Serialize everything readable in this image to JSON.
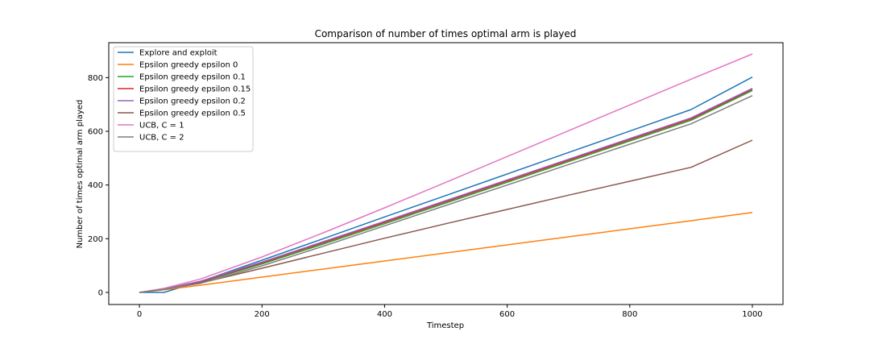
{
  "chart_data": {
    "type": "line",
    "title": "Comparison of number of times optimal arm is played",
    "xlabel": "Timestep",
    "ylabel": "Number of times optimal arm played",
    "xlim": [
      -50,
      1050
    ],
    "ylim": [
      -45,
      930
    ],
    "xticks": [
      0,
      200,
      400,
      600,
      800,
      1000
    ],
    "yticks": [
      0,
      200,
      400,
      600,
      800
    ],
    "grid": false,
    "legend_position": "top-left",
    "series": [
      {
        "name": "Explore and exploit",
        "color": "#1f77b4",
        "points": [
          [
            0,
            0
          ],
          [
            40,
            0
          ],
          [
            100,
            41
          ],
          [
            200,
            120
          ],
          [
            300,
            200
          ],
          [
            400,
            281
          ],
          [
            500,
            361
          ],
          [
            600,
            441
          ],
          [
            700,
            521
          ],
          [
            800,
            601
          ],
          [
            900,
            681
          ],
          [
            1000,
            802
          ]
        ]
      },
      {
        "name": "Epsilon greedy epsilon 0",
        "color": "#ff7f0e",
        "points": [
          [
            0,
            0
          ],
          [
            40,
            10
          ],
          [
            100,
            27
          ],
          [
            200,
            57
          ],
          [
            300,
            87
          ],
          [
            400,
            117
          ],
          [
            500,
            147
          ],
          [
            600,
            177
          ],
          [
            700,
            207
          ],
          [
            800,
            237
          ],
          [
            900,
            267
          ],
          [
            1000,
            298
          ]
        ]
      },
      {
        "name": "Epsilon greedy epsilon 0.1",
        "color": "#2ca02c",
        "points": [
          [
            0,
            0
          ],
          [
            40,
            12
          ],
          [
            100,
            38
          ],
          [
            200,
            106
          ],
          [
            300,
            180
          ],
          [
            400,
            256
          ],
          [
            500,
            333
          ],
          [
            600,
            410
          ],
          [
            700,
            487
          ],
          [
            800,
            564
          ],
          [
            900,
            641
          ],
          [
            1000,
            752
          ]
        ]
      },
      {
        "name": "Epsilon greedy epsilon 0.15",
        "color": "#d62728",
        "points": [
          [
            0,
            0
          ],
          [
            40,
            12
          ],
          [
            100,
            40
          ],
          [
            200,
            110
          ],
          [
            300,
            185
          ],
          [
            400,
            261
          ],
          [
            500,
            338
          ],
          [
            600,
            415
          ],
          [
            700,
            492
          ],
          [
            800,
            569
          ],
          [
            900,
            646
          ],
          [
            1000,
            757
          ]
        ]
      },
      {
        "name": "Epsilon greedy epsilon 0.2",
        "color": "#9467bd",
        "points": [
          [
            0,
            0
          ],
          [
            40,
            13
          ],
          [
            100,
            42
          ],
          [
            200,
            113
          ],
          [
            300,
            189
          ],
          [
            400,
            265
          ],
          [
            500,
            342
          ],
          [
            600,
            419
          ],
          [
            700,
            496
          ],
          [
            800,
            573
          ],
          [
            900,
            650
          ],
          [
            1000,
            760
          ]
        ]
      },
      {
        "name": "Epsilon greedy epsilon 0.5",
        "color": "#8c564b",
        "points": [
          [
            0,
            0
          ],
          [
            40,
            11
          ],
          [
            100,
            35
          ],
          [
            200,
            90
          ],
          [
            300,
            146
          ],
          [
            400,
            202
          ],
          [
            500,
            256
          ],
          [
            600,
            309
          ],
          [
            700,
            362
          ],
          [
            800,
            414
          ],
          [
            900,
            466
          ],
          [
            1000,
            567
          ]
        ]
      },
      {
        "name": "UCB, C = 1",
        "color": "#e377c2",
        "points": [
          [
            0,
            0
          ],
          [
            40,
            15
          ],
          [
            100,
            50
          ],
          [
            200,
            132
          ],
          [
            300,
            222
          ],
          [
            400,
            315
          ],
          [
            500,
            410
          ],
          [
            600,
            506
          ],
          [
            700,
            602
          ],
          [
            800,
            698
          ],
          [
            900,
            794
          ],
          [
            1000,
            888
          ]
        ]
      },
      {
        "name": "UCB, C = 2",
        "color": "#7f7f7f",
        "points": [
          [
            0,
            0
          ],
          [
            40,
            12
          ],
          [
            100,
            34
          ],
          [
            200,
            99
          ],
          [
            300,
            172
          ],
          [
            400,
            248
          ],
          [
            500,
            324
          ],
          [
            600,
            400
          ],
          [
            700,
            476
          ],
          [
            800,
            552
          ],
          [
            900,
            628
          ],
          [
            1000,
            733
          ]
        ]
      }
    ]
  }
}
